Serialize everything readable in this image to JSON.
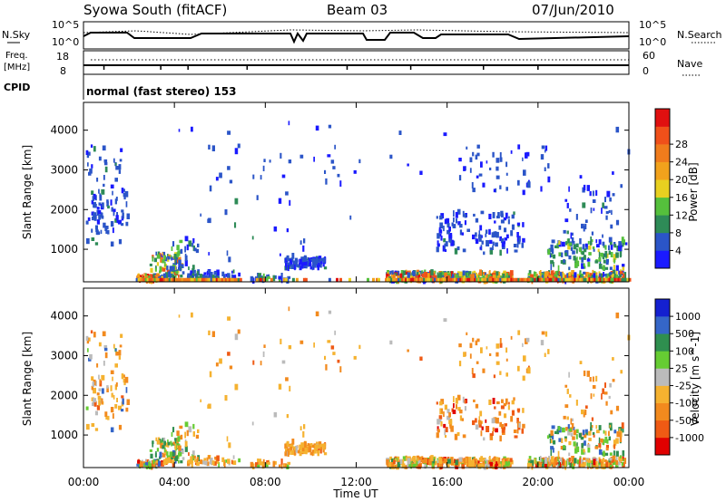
{
  "header": {
    "title": "Syowa South (fitACF)",
    "beam": "Beam 03",
    "date": "07/Jun/2010",
    "mode": "normal (fast stereo) 153"
  },
  "labels": {
    "nsky": "N.Sky",
    "freq_top": "Freq.",
    "freq_unit": "[MHz]",
    "cpid": "CPID",
    "nsearch": "N.Search",
    "nave": "Nave"
  },
  "tick_labels": {
    "nsky_left_top": "10^5",
    "nsky_left_bottom": "10^0",
    "nsky_right_top": "10^5",
    "nsky_right_bottom": "10^0",
    "freq_left_top": "18",
    "freq_left_bottom": "8",
    "nave_right_top": "60",
    "nave_right_bottom": "0"
  },
  "colors": {
    "power": [
      "#1a1aff",
      "#2b55c8",
      "#2e8b57",
      "#55c03c",
      "#e8d020",
      "#f2a21c",
      "#f07c1c",
      "#f0501a",
      "#e01010"
    ],
    "velocity": [
      "#e00000",
      "#ef5a14",
      "#f28a1e",
      "#f5b230",
      "#bbbbbb",
      "#66cc33",
      "#2f8f4f",
      "#3566c8",
      "#1420d0"
    ]
  },
  "chart_data": [
    {
      "type": "heatmap",
      "name": "power",
      "ylabel": "Slant Range [km]",
      "yticks": [
        1000,
        2000,
        3000,
        4000
      ],
      "ylim": [
        180,
        4700
      ],
      "xlim": [
        0,
        24
      ],
      "colorbar": {
        "label": "Power [dB]",
        "ticks": [
          "4",
          "8",
          "12",
          "16",
          "20",
          "24",
          "28"
        ],
        "range": [
          0,
          32
        ]
      }
    },
    {
      "type": "heatmap",
      "name": "velocity",
      "ylabel": "Slant Range [km]",
      "yticks": [
        1000,
        2000,
        3000,
        4000
      ],
      "ylim": [
        180,
        4700
      ],
      "xlim": [
        0,
        24
      ],
      "xlabel": "Time UT",
      "xticks": [
        "00:00",
        "04:00",
        "08:00",
        "12:00",
        "16:00",
        "20:00",
        "00:00"
      ],
      "colorbar": {
        "label": "Velocity [m s^-1]",
        "ticks": [
          "1000",
          "500",
          "100",
          "25",
          "-25",
          "-100",
          "-500",
          "-1000"
        ]
      }
    }
  ]
}
